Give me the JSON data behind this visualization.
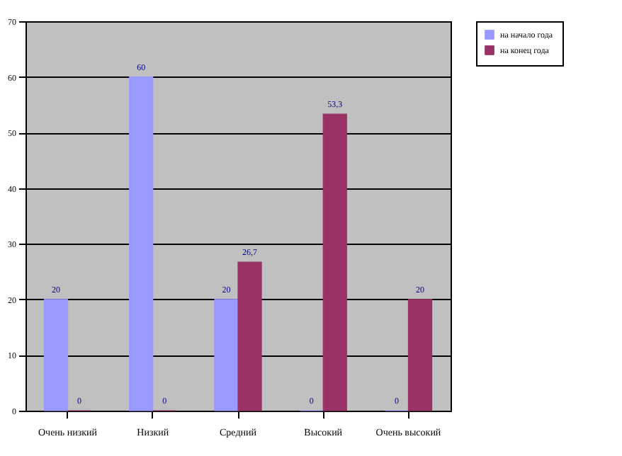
{
  "chart_data": {
    "type": "bar",
    "categories": [
      "Очень низкий",
      "Низкий",
      "Средний",
      "Высокий",
      "Очень высокий"
    ],
    "series": [
      {
        "name": "на начало года",
        "color": "#9999ff",
        "values": [
          20,
          60,
          20,
          0,
          0
        ],
        "value_labels": [
          "20",
          "60",
          "20",
          "0",
          "0"
        ]
      },
      {
        "name": "на конец года",
        "color": "#993366",
        "values": [
          0,
          0,
          26.7,
          53.3,
          20
        ],
        "value_labels": [
          "0",
          "0",
          "26,7",
          "53,3",
          "20"
        ]
      }
    ],
    "ylim": [
      0,
      70
    ],
    "yticks": [
      0,
      10,
      20,
      30,
      40,
      50,
      60,
      70
    ],
    "grid": "y",
    "legend": "right"
  }
}
